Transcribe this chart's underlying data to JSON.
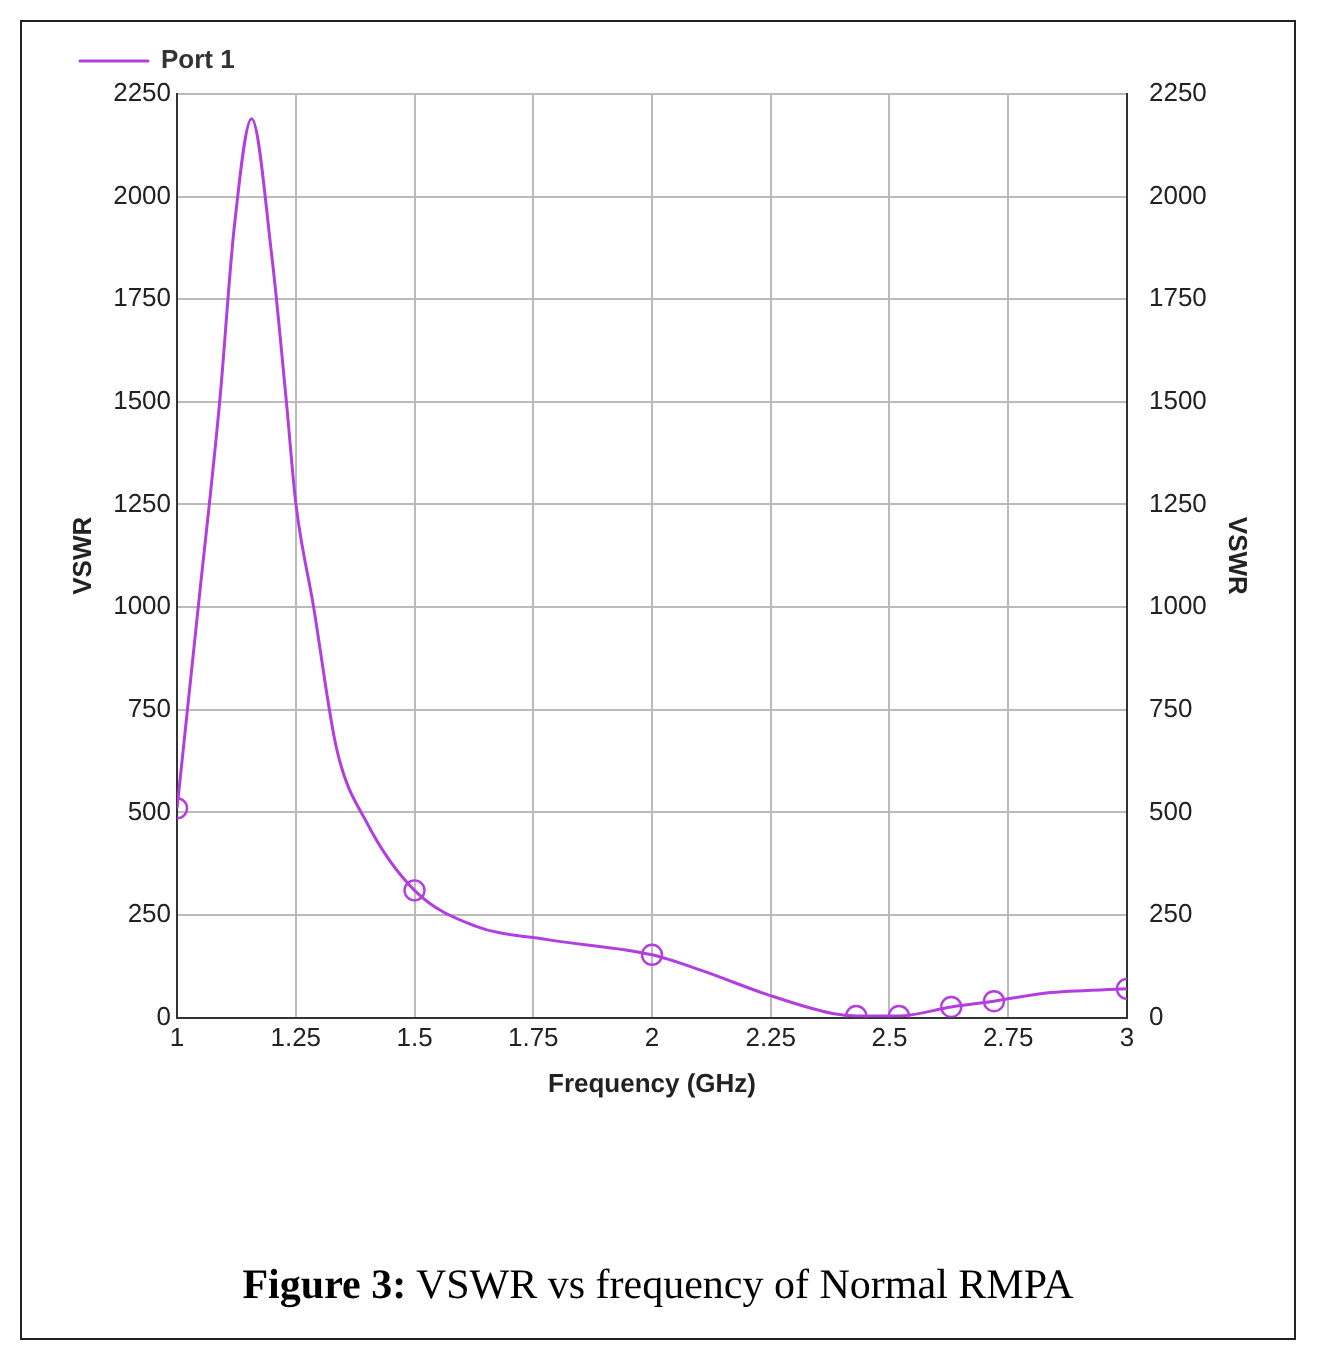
{
  "chart_data": {
    "type": "line",
    "xlabel": "Frequency (GHz)",
    "ylabel": "VSWR",
    "y2label": "VSWR",
    "annotations": [
      "Figure 3: VSWR vs frequency of Normal RMPA"
    ],
    "xlim": [
      1,
      3
    ],
    "xticks": [
      1,
      1.25,
      1.5,
      1.75,
      2,
      2.25,
      2.5,
      2.75,
      3
    ],
    "ylim": [
      0,
      2250
    ],
    "yticks": [
      0,
      250,
      500,
      750,
      1000,
      1250,
      1500,
      1750,
      2000,
      2250
    ],
    "y2lim": [
      0,
      2250
    ],
    "y2ticks": [
      0,
      250,
      500,
      750,
      1000,
      1250,
      1500,
      1750,
      2000,
      2250
    ],
    "grid": true,
    "legend": "top left",
    "line_style": "solid",
    "series": [
      {
        "name": "Port 1",
        "color": "#b23ee0",
        "marker": "none",
        "x": [
          1,
          1.045,
          1.09,
          1.12,
          1.157,
          1.2,
          1.23,
          1.25,
          1.287,
          1.336,
          1.4,
          1.5,
          1.628,
          1.78,
          2,
          2.104,
          2.243,
          2.38,
          2.43,
          2.52,
          2.63,
          2.72,
          2.83,
          3
        ],
        "values": [
          510,
          1004,
          1503,
          1920,
          2190,
          1850,
          1503,
          1254,
          1004,
          655,
          474,
          310,
          223,
          190,
          153,
          115,
          56,
          10,
          4,
          4,
          26,
          40,
          60,
          70
        ]
      },
      {
        "type": "scatter",
        "color": "#b23ee0",
        "marker": "circle",
        "x": [
          1,
          1.5,
          2,
          2.43,
          2.52,
          2.63,
          2.72,
          3
        ],
        "values": [
          510,
          310,
          153,
          4,
          4,
          26,
          40,
          70
        ]
      }
    ]
  }
}
